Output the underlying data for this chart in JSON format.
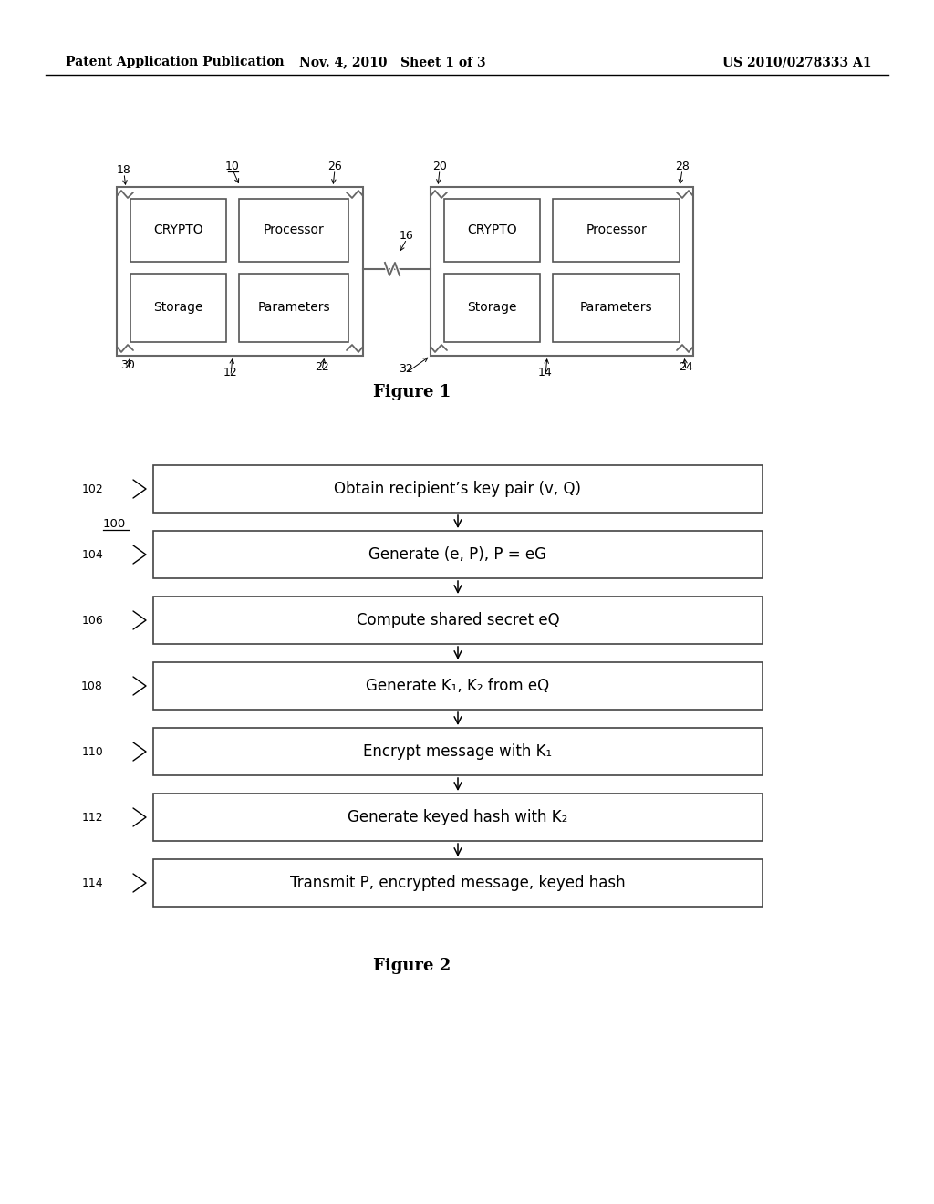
{
  "background_color": "#ffffff",
  "header_left": "Patent Application Publication",
  "header_center": "Nov. 4, 2010   Sheet 1 of 3",
  "header_right": "US 2010/0278333 A1",
  "fig1_label": "Figure 1",
  "fig2_label": "Figure 2",
  "flowchart_steps": [
    {
      "id": "102",
      "text": "Obtain recipient’s key pair (v, Q)"
    },
    {
      "id": "104",
      "text": "Generate (e, P), P = eG"
    },
    {
      "id": "106",
      "text": "Compute shared secret eQ"
    },
    {
      "id": "108",
      "text": "Generate K₁, K₂ from eQ"
    },
    {
      "id": "110",
      "text": "Encrypt message with K₁"
    },
    {
      "id": "112",
      "text": "Generate keyed hash with K₂"
    },
    {
      "id": "114",
      "text": "Transmit P, encrypted message, keyed hash"
    }
  ]
}
